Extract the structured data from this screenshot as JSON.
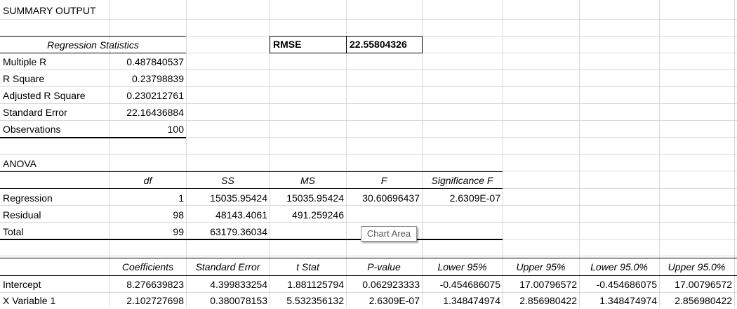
{
  "summary_title": "SUMMARY OUTPUT",
  "regression_statistics": {
    "header": "Regression Statistics",
    "rows": [
      {
        "label": "Multiple R",
        "value": "0.487840537"
      },
      {
        "label": "R Square",
        "value": "0.23798839"
      },
      {
        "label": "Adjusted R Square",
        "value": "0.230212761"
      },
      {
        "label": "Standard Error",
        "value": "22.16436884"
      },
      {
        "label": "Observations",
        "value": "100"
      }
    ]
  },
  "rmse": {
    "label": "RMSE",
    "value": "22.55804326"
  },
  "anova": {
    "title": "ANOVA",
    "headers": [
      "df",
      "SS",
      "MS",
      "F",
      "Significance F"
    ],
    "rows": [
      {
        "label": "Regression",
        "df": "1",
        "ss": "15035.95424",
        "ms": "15035.95424",
        "f": "30.60696437",
        "sig": "2.6309E-07"
      },
      {
        "label": "Residual",
        "df": "98",
        "ss": "48143.4061",
        "ms": "491.259246",
        "f": "",
        "sig": ""
      },
      {
        "label": "Total",
        "df": "99",
        "ss": "63179.36034",
        "ms": "",
        "f": "",
        "sig": ""
      }
    ]
  },
  "coefficients": {
    "headers": [
      "Coefficients",
      "Standard Error",
      "t Stat",
      "P-value",
      "Lower 95%",
      "Upper 95%",
      "Lower 95.0%",
      "Upper 95.0%"
    ],
    "rows": [
      {
        "label": "Intercept",
        "values": [
          "8.276639823",
          "4.399833254",
          "1.881125794",
          "0.062923333",
          "-0.454686075",
          "17.00796572",
          "-0.454686075",
          "17.00796572"
        ]
      },
      {
        "label": "X Variable 1",
        "values": [
          "2.102727698",
          "0.380078153",
          "5.532356132",
          "2.6309E-07",
          "1.348474974",
          "2.856980422",
          "1.348474974",
          "2.856980422"
        ]
      }
    ]
  },
  "tooltip": "Chart Area"
}
